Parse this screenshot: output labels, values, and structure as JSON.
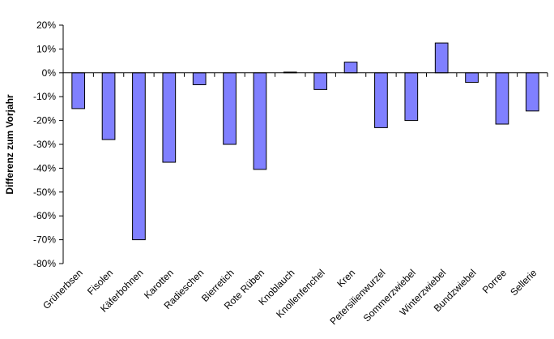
{
  "chart_data": {
    "type": "bar",
    "title": "",
    "xlabel": "",
    "ylabel": "Differenz zum Vorjahr",
    "ylim": [
      -80,
      20
    ],
    "yticks": [
      20,
      10,
      0,
      -10,
      -20,
      -30,
      -40,
      -50,
      -60,
      -70,
      -80
    ],
    "ytick_labels": [
      "20%",
      "10%",
      "0%",
      "-10%",
      "-20%",
      "-30%",
      "-40%",
      "-50%",
      "-60%",
      "-70%",
      "-80%"
    ],
    "grid": false,
    "legend": "none",
    "bar_color": "#8080ff",
    "categories": [
      "Grünerbsen",
      "Fisolen",
      "Käferbohnen",
      "Karotten",
      "Radieschen",
      "Bierretich",
      "Rote Rüben",
      "Knoblauch",
      "Knollenfenchel",
      "Kren",
      "Petersilienwurzel",
      "Sommerzwiebel",
      "Winterzwiebel",
      "Bundzwiebel",
      "Porree",
      "Sellerie"
    ],
    "values": [
      -15,
      -28,
      -70,
      -37.5,
      -5,
      -30,
      -40.5,
      0.3,
      -7,
      4.5,
      -23,
      -20,
      12.5,
      -4,
      -21.5,
      -16
    ]
  }
}
